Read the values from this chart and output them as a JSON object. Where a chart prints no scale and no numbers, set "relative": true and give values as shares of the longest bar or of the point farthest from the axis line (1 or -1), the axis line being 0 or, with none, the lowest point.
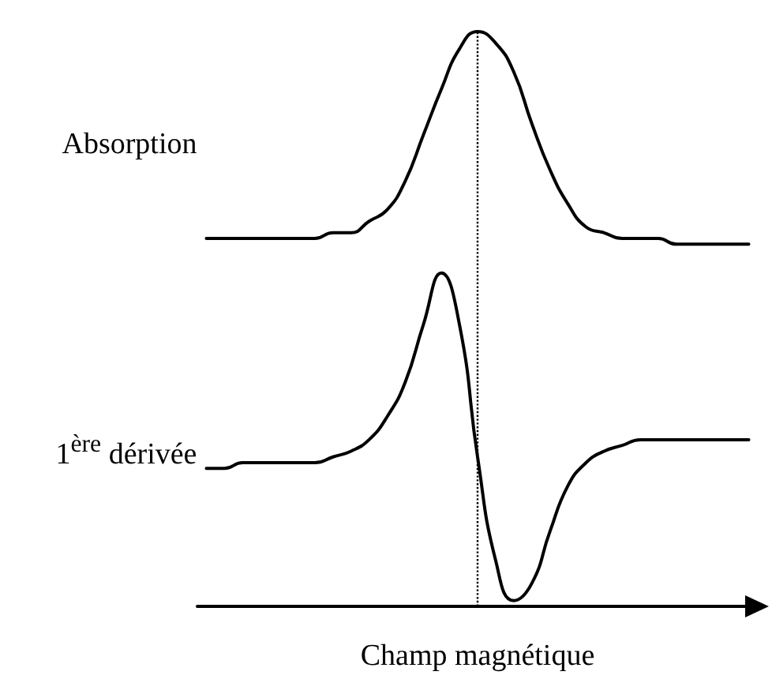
{
  "chart_data": {
    "type": "line",
    "relative": true,
    "xlabel": "Champ magnétique",
    "tick_labels": false,
    "grid": false,
    "legend": false,
    "marker": "none",
    "line_style": "solid",
    "categories": [
      null,
      null,
      null,
      null,
      null,
      null,
      null,
      null,
      null,
      null,
      null,
      null,
      null,
      null,
      null,
      null,
      null,
      null,
      null,
      null,
      null,
      null,
      null,
      null,
      null,
      null,
      null,
      null,
      null,
      null,
      null
    ],
    "ref_lines": [
      {
        "axis": "x",
        "line_style": "dotted",
        "color": "#000000"
      }
    ],
    "series": [
      {
        "name": "Absorption",
        "color": "#000000",
        "values": [
          0.64,
          0.64,
          0.64,
          0.64,
          0.64,
          0.64,
          0.64,
          0.65,
          0.65,
          0.67,
          0.69,
          0.74,
          0.82,
          0.9,
          0.97,
          1,
          0.98,
          0.93,
          0.84,
          0.76,
          0.7,
          0.66,
          0.65,
          0.64,
          0.64,
          0.64,
          0.63,
          0.63,
          0.63,
          0.63,
          0.63
        ]
      },
      {
        "name": "1$^{ère}$ dérivée",
        "color": "#000000",
        "values": [
          0.24,
          0.24,
          0.25,
          0.25,
          0.25,
          0.25,
          0.25,
          0.26,
          0.27,
          0.29,
          0.33,
          0.39,
          0.49,
          0.58,
          0.49,
          0.26,
          0.08,
          0.01,
          0.04,
          0.13,
          0.21,
          0.25,
          0.27,
          0.28,
          0.29,
          0.29,
          0.29,
          0.29,
          0.29,
          0.29,
          0.29
        ]
      }
    ]
  }
}
